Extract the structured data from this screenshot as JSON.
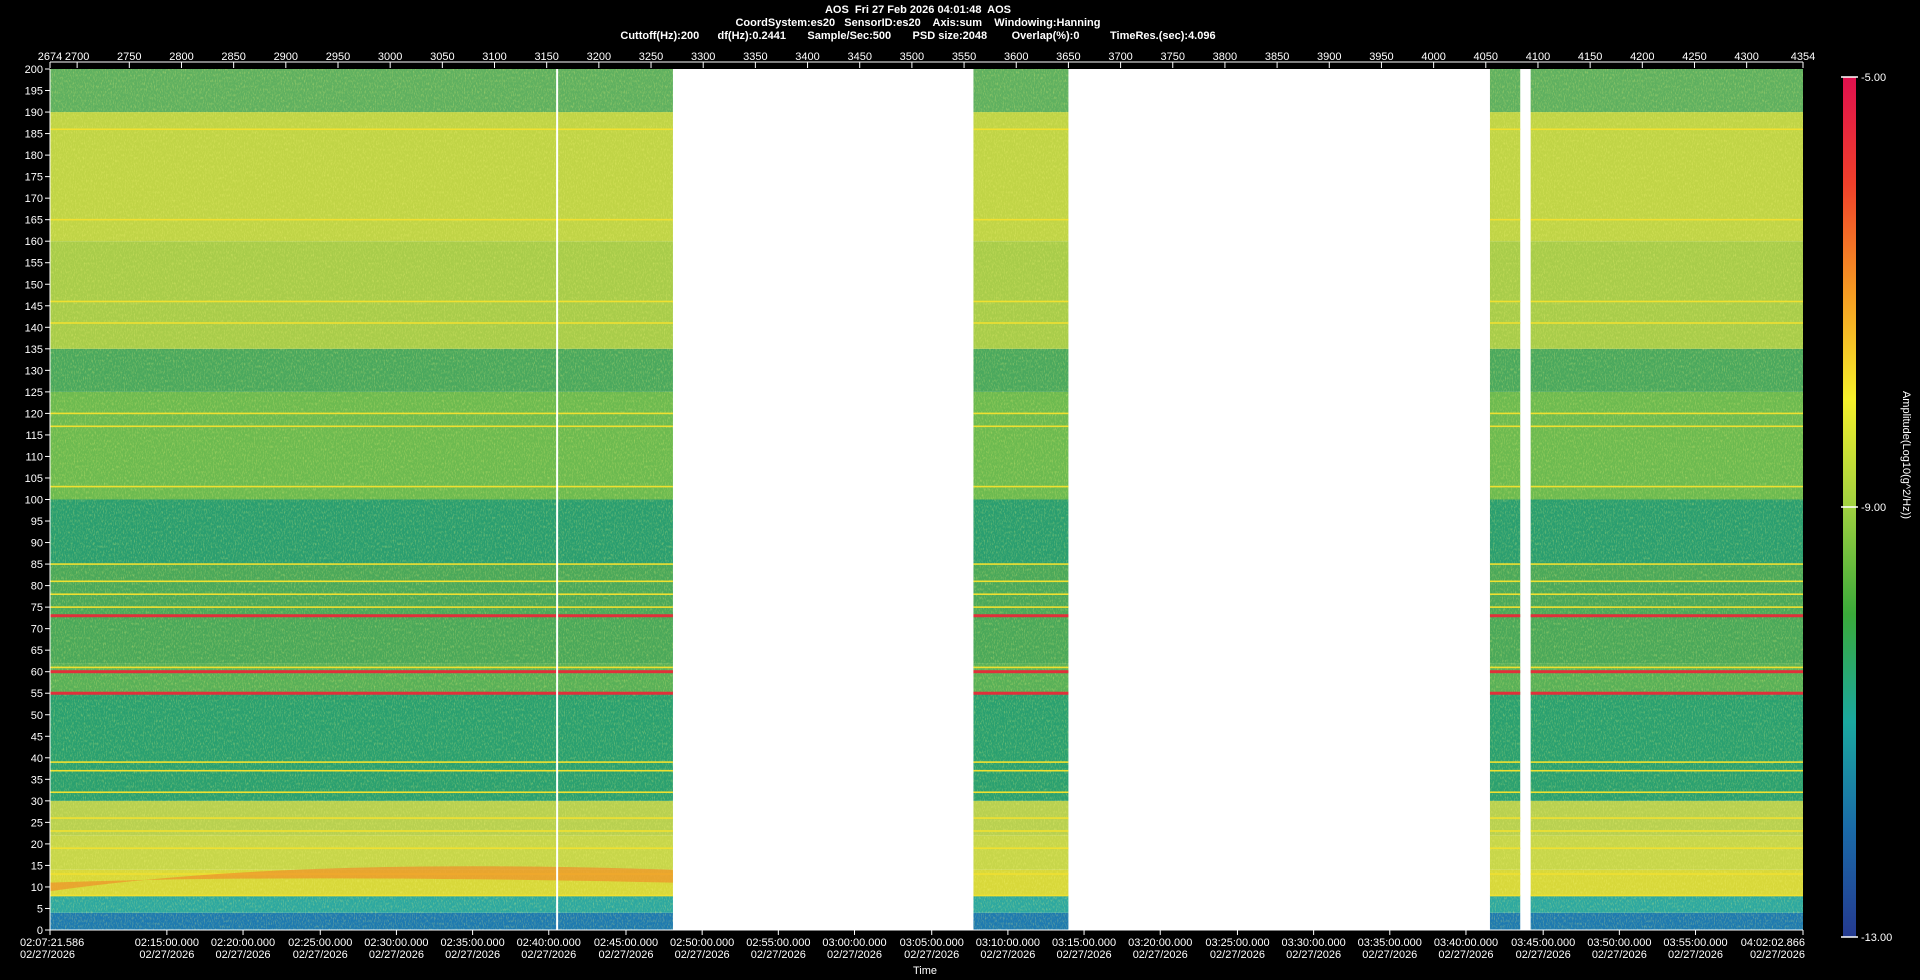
{
  "header": {
    "line1": "AOS  Fri 27 Feb 2026 04:01:48  AOS",
    "line2": "CoordSystem:es20   SensorID:es20    Axis:sum    Windowing:Hanning",
    "line3": "Cuttoff(Hz):200      df(Hz):0.2441       Sample/Sec:500       PSD size:2048        Overlap(%):0          TimeRes.(sec):4.096"
  },
  "chart_data": {
    "type": "heatmap",
    "title": "AOS  Fri 27 Feb 2026 04:01:48  AOS",
    "xlabel": "Time",
    "ylabel": "",
    "colorbar_label": "Amplitude(Log10(g^2/Hz))",
    "colorbar_range": [
      -13,
      -5
    ],
    "colorbar_ticks": [
      "-5.00",
      "-9.00",
      "-13.00"
    ],
    "colorbar_colors": [
      "#e0104e",
      "#f0402a",
      "#f59a22",
      "#f5f02a",
      "#9fd040",
      "#3aaa3a",
      "#1aa8a0",
      "#1a6aa8",
      "#243a90"
    ],
    "ylim": [
      0,
      200
    ],
    "y_ticks": [
      0,
      5,
      10,
      15,
      20,
      25,
      30,
      35,
      40,
      45,
      50,
      55,
      60,
      65,
      70,
      75,
      80,
      85,
      90,
      95,
      100,
      105,
      110,
      115,
      120,
      125,
      130,
      135,
      140,
      145,
      150,
      155,
      160,
      165,
      170,
      175,
      180,
      185,
      190,
      195,
      200
    ],
    "xlim_index": [
      2674,
      4354
    ],
    "top_ticks": [
      "2674",
      "2700",
      "2750",
      "2800",
      "2850",
      "2900",
      "2950",
      "3000",
      "3050",
      "3100",
      "3150",
      "3200",
      "3250",
      "3300",
      "3350",
      "3400",
      "3450",
      "3500",
      "3550",
      "3600",
      "3650",
      "3700",
      "3750",
      "3800",
      "3850",
      "3900",
      "3950",
      "4000",
      "4050",
      "4100",
      "4150",
      "4200",
      "4250",
      "4300",
      "4354"
    ],
    "top_tick_values": [
      2674,
      2700,
      2750,
      2800,
      2850,
      2900,
      2950,
      3000,
      3050,
      3100,
      3150,
      3200,
      3250,
      3300,
      3350,
      3400,
      3450,
      3500,
      3550,
      3600,
      3650,
      3700,
      3750,
      3800,
      3850,
      3900,
      3950,
      4000,
      4050,
      4100,
      4150,
      4200,
      4250,
      4300,
      4354
    ],
    "time_ticks": [
      "02:07:21.586",
      "02:15:00.000",
      "02:20:00.000",
      "02:25:00.000",
      "02:30:00.000",
      "02:35:00.000",
      "02:40:00.000",
      "02:45:00.000",
      "02:50:00.000",
      "02:55:00.000",
      "03:00:00.000",
      "03:05:00.000",
      "03:10:00.000",
      "03:15:00.000",
      "03:20:00.000",
      "03:25:00.000",
      "03:30:00.000",
      "03:35:00.000",
      "03:40:00.000",
      "03:45:00.000",
      "03:50:00.000",
      "03:55:00.000",
      "04:02:02.866"
    ],
    "time_tick_index": [
      2674,
      2786,
      2859,
      2933,
      3006,
      3079,
      3152,
      3226,
      3299,
      3372,
      3445,
      3519,
      3592,
      3665,
      3738,
      3812,
      3885,
      3958,
      4031,
      4105,
      4178,
      4251,
      4354
    ],
    "date_label": "02/27/2026",
    "data_segments_index": [
      [
        2674,
        3271
      ],
      [
        3559,
        3650
      ],
      [
        4054,
        4083
      ],
      [
        4093,
        4354
      ]
    ],
    "gap_line_index": 3160,
    "strong_lines_hz": [
      60,
      73,
      55
    ],
    "moderate_lines_hz": [
      8,
      13,
      19,
      23,
      26,
      32,
      37,
      39,
      61,
      75,
      78,
      81,
      85,
      103,
      117,
      120,
      141,
      146,
      165,
      186
    ]
  }
}
